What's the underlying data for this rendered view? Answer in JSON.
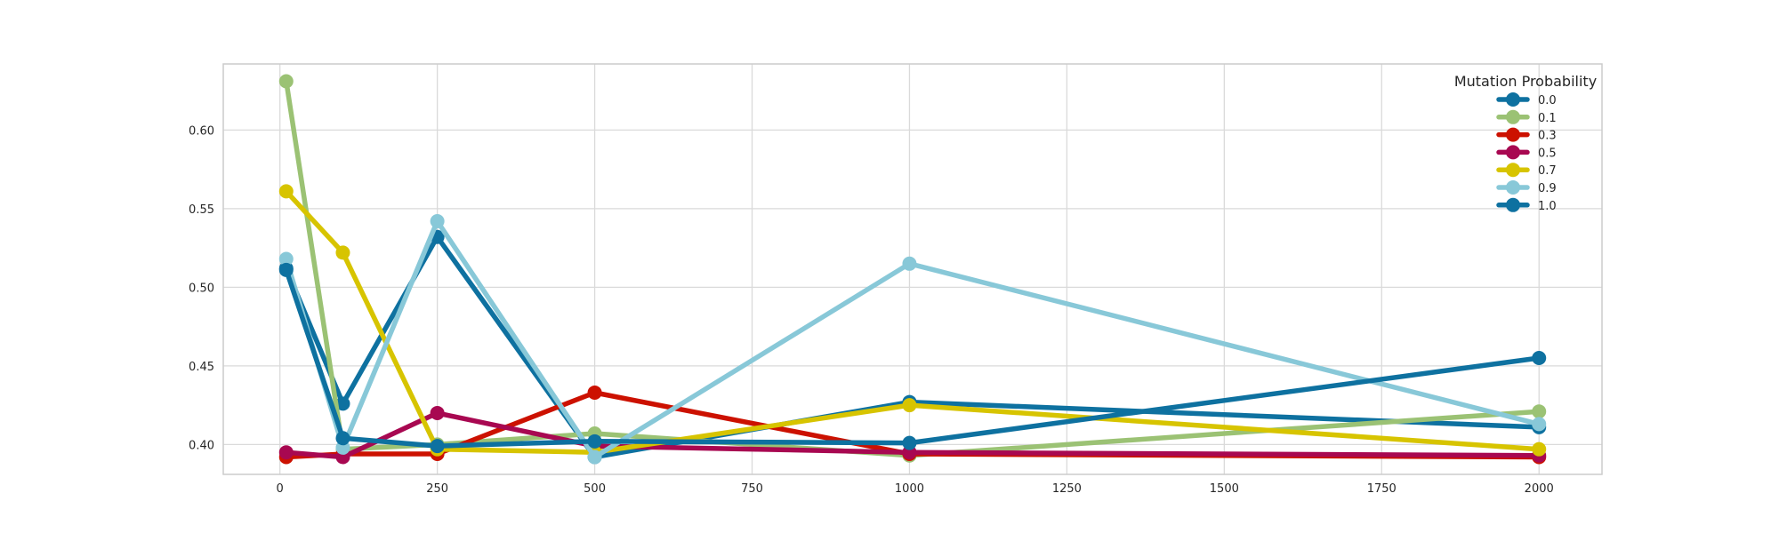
{
  "chart_data": {
    "type": "line",
    "title": "",
    "xlabel": "",
    "ylabel": "",
    "xlim": [
      -90,
      2100
    ],
    "ylim": [
      0.381,
      0.642
    ],
    "xticks": [
      0,
      250,
      500,
      750,
      1000,
      1250,
      1500,
      1750,
      2000
    ],
    "yticks": [
      0.4,
      0.45,
      0.5,
      0.55,
      0.6
    ],
    "grid": true,
    "legend": {
      "title": "Mutation Probability",
      "position": "top-right"
    },
    "x": [
      10,
      100,
      250,
      500,
      1000,
      2000
    ],
    "series": [
      {
        "name": "0.0",
        "color": "#0e71a0",
        "values": [
          0.512,
          0.426,
          0.532,
          0.392,
          0.427,
          0.411
        ]
      },
      {
        "name": "0.1",
        "color": "#9bc274",
        "values": [
          0.631,
          0.397,
          0.4,
          0.407,
          0.393,
          0.421
        ]
      },
      {
        "name": "0.3",
        "color": "#cc1100",
        "values": [
          0.392,
          0.394,
          0.394,
          0.433,
          0.394,
          0.392
        ]
      },
      {
        "name": "0.5",
        "color": "#a80851",
        "values": [
          0.395,
          0.392,
          0.42,
          0.399,
          0.395,
          0.393
        ]
      },
      {
        "name": "0.7",
        "color": "#d7c400",
        "values": [
          0.561,
          0.522,
          0.397,
          0.395,
          0.425,
          0.397
        ]
      },
      {
        "name": "0.9",
        "color": "#88c8d8",
        "values": [
          0.518,
          0.398,
          0.542,
          0.392,
          0.515,
          0.413
        ]
      },
      {
        "name": "1.0",
        "color": "#0e71a0",
        "values": [
          0.511,
          0.404,
          0.399,
          0.402,
          0.401,
          0.455
        ]
      }
    ]
  }
}
